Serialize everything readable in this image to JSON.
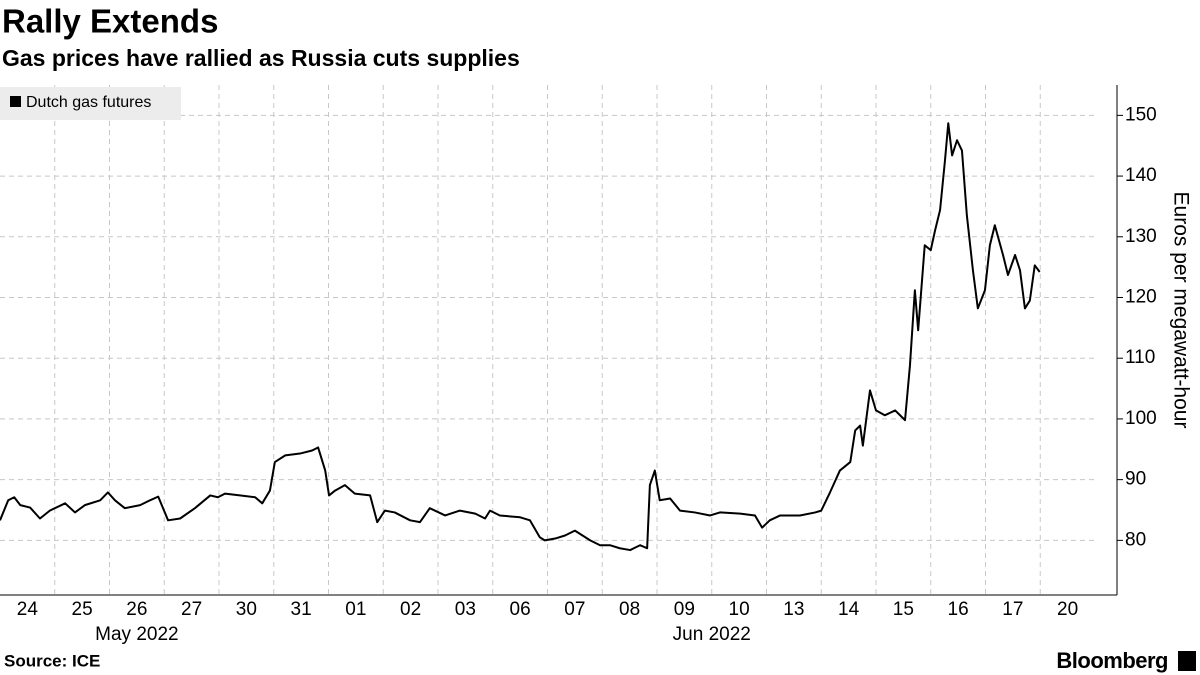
{
  "chart_data": {
    "type": "line",
    "title": "Rally Extends",
    "subtitle": "Gas prices have rallied as Russia cuts supplies",
    "y_label": "Euros per megawatt-hour",
    "source": "Source: ICE",
    "brand": "Bloomberg",
    "xlim": [
      0,
      20
    ],
    "xticks": [
      {
        "value": 0.5,
        "label": "24"
      },
      {
        "value": 1.5,
        "label": "25"
      },
      {
        "value": 2.5,
        "label": "26"
      },
      {
        "value": 3.5,
        "label": "27"
      },
      {
        "value": 4.5,
        "label": "30"
      },
      {
        "value": 5.5,
        "label": "31"
      },
      {
        "value": 6.5,
        "label": "01"
      },
      {
        "value": 7.5,
        "label": "02"
      },
      {
        "value": 8.5,
        "label": "03"
      },
      {
        "value": 9.5,
        "label": "06"
      },
      {
        "value": 10.5,
        "label": "07"
      },
      {
        "value": 11.5,
        "label": "08"
      },
      {
        "value": 12.5,
        "label": "09"
      },
      {
        "value": 13.5,
        "label": "10"
      },
      {
        "value": 14.5,
        "label": "13"
      },
      {
        "value": 15.5,
        "label": "14"
      },
      {
        "value": 16.5,
        "label": "15"
      },
      {
        "value": 17.5,
        "label": "16"
      },
      {
        "value": 18.5,
        "label": "17"
      },
      {
        "value": 19.5,
        "label": "20"
      }
    ],
    "month_labels": [
      {
        "label": "May 2022",
        "start": 0,
        "end": 5
      },
      {
        "label": "Jun 2022",
        "start": 6,
        "end": 20
      }
    ],
    "ylim": [
      71,
      155
    ],
    "yticks": [
      80,
      90,
      100,
      110,
      120,
      130,
      140,
      150
    ],
    "grid": true,
    "series": [
      {
        "name": "Dutch gas futures",
        "color": "#000000",
        "x": [
          0,
          0.15,
          0.26,
          0.37,
          0.55,
          0.73,
          0.91,
          1.19,
          1.37,
          1.55,
          1.83,
          1.97,
          2.1,
          2.28,
          2.56,
          2.74,
          2.89,
          3.07,
          3.29,
          3.56,
          3.84,
          3.98,
          4.11,
          4.38,
          4.66,
          4.79,
          4.93,
          5.02,
          5.21,
          5.48,
          5.7,
          5.81,
          5.94,
          6.01,
          6.12,
          6.3,
          6.48,
          6.76,
          6.89,
          7.03,
          7.21,
          7.49,
          7.67,
          7.85,
          8.13,
          8.4,
          8.68,
          8.86,
          8.95,
          9.13,
          9.5,
          9.68,
          9.86,
          9.95,
          10.14,
          10.32,
          10.5,
          10.78,
          10.96,
          11.14,
          11.32,
          11.51,
          11.69,
          11.82,
          11.87,
          11.96,
          12.05,
          12.24,
          12.42,
          12.69,
          12.97,
          13.15,
          13.52,
          13.79,
          13.92,
          14.06,
          14.25,
          14.61,
          14.89,
          15.0,
          15.16,
          15.34,
          15.53,
          15.62,
          15.71,
          15.76,
          15.89,
          16.0,
          16.16,
          16.35,
          16.53,
          16.62,
          16.71,
          16.77,
          16.89,
          17.0,
          17.08,
          17.17,
          17.26,
          17.32,
          17.39,
          17.48,
          17.57,
          17.66,
          17.77,
          17.86,
          17.99,
          18.08,
          18.17,
          18.32,
          18.41,
          18.54,
          18.63,
          18.72,
          18.81,
          18.9,
          18.99
        ],
        "values": [
          83.3,
          86.6,
          87.1,
          85.8,
          85.4,
          83.6,
          84.9,
          86.1,
          84.6,
          85.8,
          86.6,
          87.9,
          86.6,
          85.3,
          85.8,
          86.6,
          87.2,
          83.3,
          83.6,
          85.3,
          87.4,
          87.1,
          87.7,
          87.4,
          87.1,
          86.1,
          88.2,
          92.9,
          94.0,
          94.3,
          94.8,
          95.3,
          91.5,
          87.4,
          88.2,
          89.1,
          87.7,
          87.4,
          83.0,
          84.9,
          84.6,
          83.3,
          83.0,
          85.3,
          84.1,
          84.9,
          84.4,
          83.6,
          84.9,
          84.1,
          83.8,
          83.3,
          80.5,
          80.0,
          80.3,
          80.8,
          81.6,
          80.0,
          79.2,
          79.2,
          78.7,
          78.4,
          79.2,
          78.7,
          89.1,
          91.5,
          86.6,
          86.9,
          84.9,
          84.6,
          84.1,
          84.6,
          84.4,
          84.1,
          82.1,
          83.3,
          84.1,
          84.1,
          84.6,
          84.9,
          87.9,
          91.5,
          92.9,
          98.1,
          98.9,
          95.6,
          104.7,
          101.4,
          100.6,
          101.4,
          99.8,
          108.8,
          121.2,
          114.6,
          128.6,
          127.8,
          131.1,
          134.4,
          142.6,
          148.7,
          143.4,
          145.9,
          144.2,
          133.5,
          124.5,
          118.2,
          121.2,
          128.6,
          131.9,
          127.0,
          123.7,
          127.0,
          124.5,
          118.2,
          119.5,
          125.3,
          124.2
        ]
      }
    ]
  }
}
